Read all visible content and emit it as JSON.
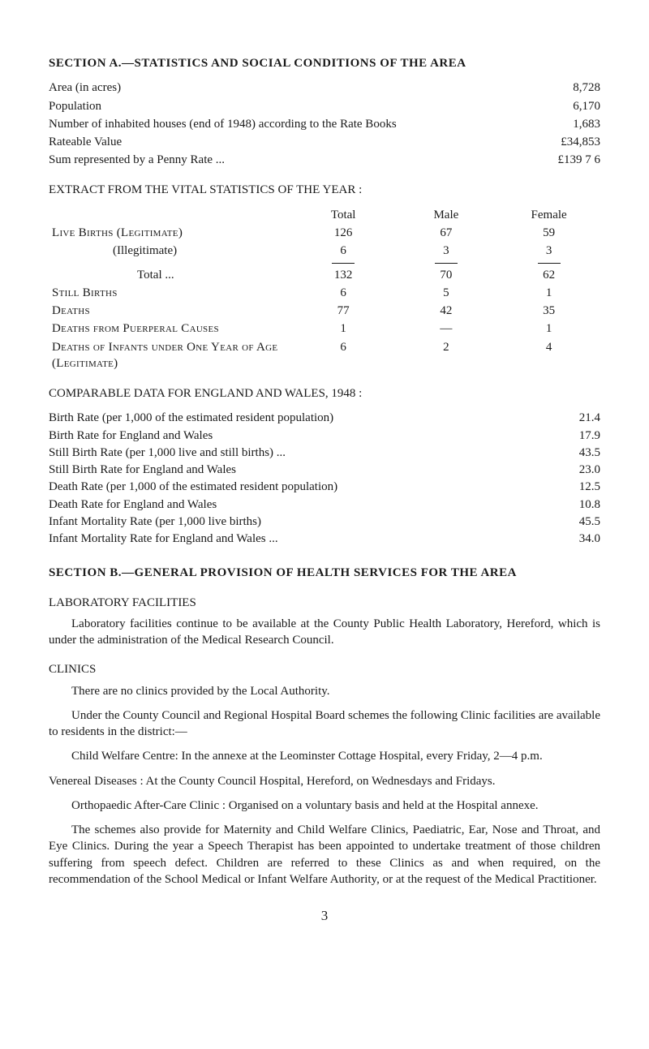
{
  "sectionA": {
    "title": "SECTION A.—STATISTICS AND SOCIAL CONDITIONS OF THE AREA",
    "rows": [
      {
        "label": "Area (in acres)",
        "value": "8,728"
      },
      {
        "label": "Population",
        "value": "6,170"
      },
      {
        "label": "Number of inhabited houses (end of 1948) according to the Rate Books",
        "value": "1,683"
      },
      {
        "label": "Rateable Value",
        "value": "£34,853"
      },
      {
        "label": "Sum represented by a Penny Rate ...",
        "value": "£139  7  6"
      }
    ]
  },
  "extract": {
    "title": "EXTRACT FROM THE VITAL STATISTICS OF THE YEAR :",
    "headers": {
      "total": "Total",
      "male": "Male",
      "female": "Female"
    },
    "rows": [
      {
        "label": "Live Births (Legitimate)",
        "total": "126",
        "male": "67",
        "female": "59",
        "smallcaps": true
      },
      {
        "label": "(Illegitimate)",
        "total": "6",
        "male": "3",
        "female": "3",
        "indent": true
      },
      {
        "rule": true
      },
      {
        "label": "Total  ...",
        "total": "132",
        "male": "70",
        "female": "62",
        "indent2": true
      },
      {
        "label": "Still Births",
        "total": "6",
        "male": "5",
        "female": "1",
        "smallcaps": true
      },
      {
        "label": "Deaths",
        "total": "77",
        "male": "42",
        "female": "35",
        "smallcaps": true
      },
      {
        "label": "Deaths from Puerperal Causes",
        "total": "1",
        "male": "—",
        "female": "1",
        "smallcaps": true
      },
      {
        "label": "Deaths of Infants under One Year of Age (Legitimate)",
        "total": "6",
        "male": "2",
        "female": "4",
        "smallcaps": true
      }
    ]
  },
  "comparable": {
    "title": "COMPARABLE DATA FOR ENGLAND AND WALES, 1948 :",
    "rows": [
      {
        "label": "Birth Rate (per 1,000 of the estimated resident population)",
        "value": "21.4"
      },
      {
        "label": "Birth Rate for England and Wales",
        "value": "17.9"
      },
      {
        "label": "Still Birth Rate (per 1,000 live and still births) ...",
        "value": "43.5"
      },
      {
        "label": "Still Birth Rate for England and Wales",
        "value": "23.0"
      },
      {
        "label": "Death Rate (per 1,000 of the estimated resident population)",
        "value": "12.5"
      },
      {
        "label": "Death Rate for England and Wales",
        "value": "10.8"
      },
      {
        "label": "Infant Mortality Rate (per 1,000 live births)",
        "value": "45.5"
      },
      {
        "label": "Infant Mortality Rate for England and Wales ...",
        "value": "34.0"
      }
    ]
  },
  "sectionB": {
    "title": "SECTION B.—GENERAL PROVISION OF HEALTH SERVICES FOR THE AREA",
    "lab": {
      "heading": "LABORATORY FACILITIES",
      "para": "Laboratory facilities continue to be available at the County Public Health Laboratory, Hereford, which is under the administration of the Medical Research Council."
    },
    "clinics": {
      "heading": "CLINICS",
      "p1": "There are no clinics provided by the Local Authority.",
      "p2": "Under the County Council and Regional Hospital Board schemes the following Clinic facilities are available to residents in the district:—",
      "p3": "Child Welfare Centre: In the annexe at the Leominster Cottage Hospital, every Friday, 2—4 p.m.",
      "p4": "Venereal Diseases : At the County Council Hospital, Hereford, on Wednesdays and Fridays.",
      "p5": "Orthopaedic After-Care Clinic : Organised on a voluntary basis and held at the Hospital annexe.",
      "p6": "The schemes also provide for Maternity and Child Welfare Clinics, Paediatric, Ear, Nose and Throat, and Eye Clinics.  During the year a Speech Therapist has been appointed to undertake treatment of those children suffering from speech defect.  Children are referred to these Clinics as and when required, on the recommendation of the School Medical or Infant Welfare Authority, or at the request of the Medical Practitioner."
    }
  },
  "pagenum": "3"
}
